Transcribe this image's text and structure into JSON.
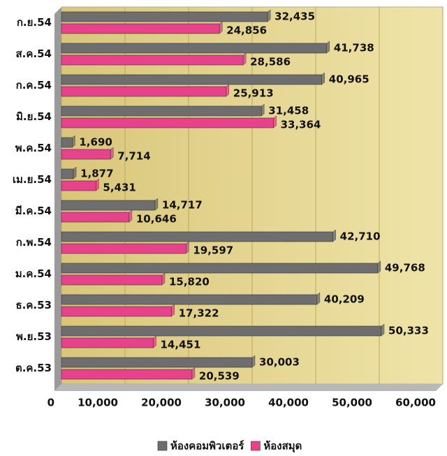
{
  "chart_data": {
    "type": "bar",
    "orientation": "horizontal",
    "categories": [
      "ก.ย.54",
      "ส.ค.54",
      "ก.ค.54",
      "มิ.ย.54",
      "พ.ค.54",
      "เม.ย.54",
      "มี.ค.54",
      "ก.พ.54",
      "ม.ค.54",
      "ธ.ค.53",
      "พ.ย.53",
      "ต.ค.53"
    ],
    "series": [
      {
        "name": "ห้องคอมพิวเตอร์",
        "color": "#6e6e6e",
        "values": [
          32435,
          41738,
          40965,
          31458,
          1690,
          1877,
          14717,
          42710,
          49768,
          40209,
          50333,
          30003
        ],
        "value_labels": [
          "32,435",
          "41,738",
          "40,965",
          "31,458",
          "1,690",
          "1,877",
          "14,717",
          "42,710",
          "49,768",
          "40,209",
          "50,333",
          "30,003"
        ]
      },
      {
        "name": "ห้องสมุด",
        "color": "#e8428c",
        "values": [
          24856,
          28586,
          25913,
          33364,
          7714,
          5431,
          10646,
          19597,
          15820,
          17322,
          14451,
          20539
        ],
        "value_labels": [
          "24,856",
          "28,586",
          "25,913",
          "33,364",
          "7,714",
          "5,431",
          "10,646",
          "19,597",
          "15,820",
          "17,322",
          "14,451",
          "20,539"
        ]
      }
    ],
    "xlim": [
      0,
      60000
    ],
    "xticks": [
      0,
      {
        "value": 10000,
        "label": "10,000"
      },
      {
        "value": 20000,
        "label": "20,000"
      },
      {
        "value": 30000,
        "label": "30,000"
      },
      {
        "value": 40000,
        "label": "40,000"
      },
      {
        "value": 50000,
        "label": "50,000"
      },
      {
        "value": 60000,
        "label": "60,000"
      }
    ],
    "grid": true,
    "legend": "bottom"
  }
}
